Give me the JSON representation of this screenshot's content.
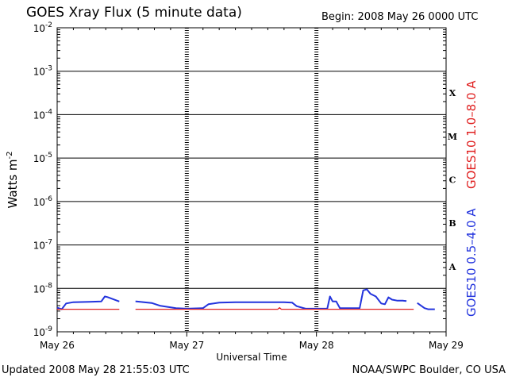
{
  "header": {
    "title": "GOES Xray Flux (5 minute data)",
    "begin": "Begin:  2008 May 26 0000 UTC"
  },
  "footer": {
    "updated": "Updated 2008 May 28 21:55:03 UTC",
    "credit": "NOAA/SWPC Boulder, CO USA"
  },
  "chart_data": {
    "type": "line",
    "xlabel": "Universal Time",
    "ylabel": "Watts m",
    "ylabel_exp": "-2",
    "yscale": "log",
    "ylim": [
      1e-09,
      0.01
    ],
    "xlim": [
      "2008-05-26 00:00",
      "2008-05-29 00:00"
    ],
    "x_ticks": [
      "May 26",
      "May 27",
      "May 28",
      "May 29"
    ],
    "y_ticks": [
      {
        "base": "10",
        "exp": "-2"
      },
      {
        "base": "10",
        "exp": "-3"
      },
      {
        "base": "10",
        "exp": "-4"
      },
      {
        "base": "10",
        "exp": "-5"
      },
      {
        "base": "10",
        "exp": "-6"
      },
      {
        "base": "10",
        "exp": "-7"
      },
      {
        "base": "10",
        "exp": "-8"
      },
      {
        "base": "10",
        "exp": "-9"
      }
    ],
    "flare_classes": [
      "X",
      "M",
      "C",
      "B",
      "A"
    ],
    "grid": "horizontal decade lines, dashed day separators",
    "series": [
      {
        "name": "GOES10 0.5–4.0 A",
        "color": "#2233dd",
        "x": [
          "2008-05-26 00:00",
          "2008-05-26 00:50",
          "2008-05-26 01:40",
          "2008-05-26 03:00",
          "2008-05-26 06:00",
          "2008-05-26 08:10",
          "2008-05-26 08:50",
          "2008-05-26 09:20",
          "2008-05-26 11:30",
          "2008-05-26 11:40",
          "2008-05-26 14:30",
          "2008-05-26 14:40",
          "2008-05-26 17:30",
          "2008-05-26 19:00",
          "2008-05-26 22:00",
          "2008-05-27 00:00",
          "2008-05-27 03:00",
          "2008-05-27 04:00",
          "2008-05-27 06:00",
          "2008-05-27 09:00",
          "2008-05-27 12:00",
          "2008-05-27 15:00",
          "2008-05-27 18:00",
          "2008-05-27 19:30",
          "2008-05-27 20:20",
          "2008-05-27 22:00",
          "2008-05-28 02:00",
          "2008-05-28 02:30",
          "2008-05-28 03:00",
          "2008-05-28 03:40",
          "2008-05-28 04:20",
          "2008-05-28 08:00",
          "2008-05-28 08:40",
          "2008-05-28 09:20",
          "2008-05-28 10:00",
          "2008-05-28 11:00",
          "2008-05-28 12:00",
          "2008-05-28 12:40",
          "2008-05-28 13:20",
          "2008-05-28 14:00",
          "2008-05-28 15:00",
          "2008-05-28 16:00",
          "2008-05-28 16:40",
          "2008-05-28 18:00",
          "2008-05-28 18:40",
          "2008-05-28 20:00",
          "2008-05-28 20:40",
          "2008-05-28 21:20",
          "2008-05-28 21:55"
        ],
        "y": [
          3.6e-09,
          3.3e-09,
          4.5e-09,
          4.8e-09,
          4.9e-09,
          5e-09,
          6.5e-09,
          6.3e-09,
          5e-09,
          null,
          5e-09,
          5e-09,
          4.6e-09,
          4e-09,
          3.5e-09,
          3.4e-09,
          3.5e-09,
          4.3e-09,
          4.7e-09,
          4.8e-09,
          4.8e-09,
          4.8e-09,
          4.8e-09,
          4.7e-09,
          3.9e-09,
          3.4e-09,
          3.4e-09,
          6.5e-09,
          5e-09,
          5e-09,
          3.5e-09,
          3.5e-09,
          9e-09,
          9.5e-09,
          7.5e-09,
          6.5e-09,
          4.5e-09,
          4.3e-09,
          6.2e-09,
          5.5e-09,
          5.2e-09,
          5.2e-09,
          5.1e-09,
          null,
          4.6e-09,
          3.5e-09,
          3.3e-09,
          3.3e-09,
          3.3e-09
        ]
      },
      {
        "name": "GOES10 1.0–8.0 A",
        "color": "#e02020",
        "x": [
          "2008-05-26 00:00",
          "2008-05-26 11:30",
          "2008-05-26 11:40",
          "2008-05-26 14:30",
          "2008-05-26 14:40",
          "2008-05-27 16:50",
          "2008-05-27 17:10",
          "2008-05-27 17:30",
          "2008-05-28 18:00",
          "2008-05-28 18:40",
          "2008-05-28 21:55"
        ],
        "y": [
          3.3e-09,
          3.3e-09,
          null,
          3.3e-09,
          3.3e-09,
          3.3e-09,
          3.6e-09,
          3.3e-09,
          3.3e-09,
          null,
          3.3e-09
        ]
      }
    ]
  }
}
